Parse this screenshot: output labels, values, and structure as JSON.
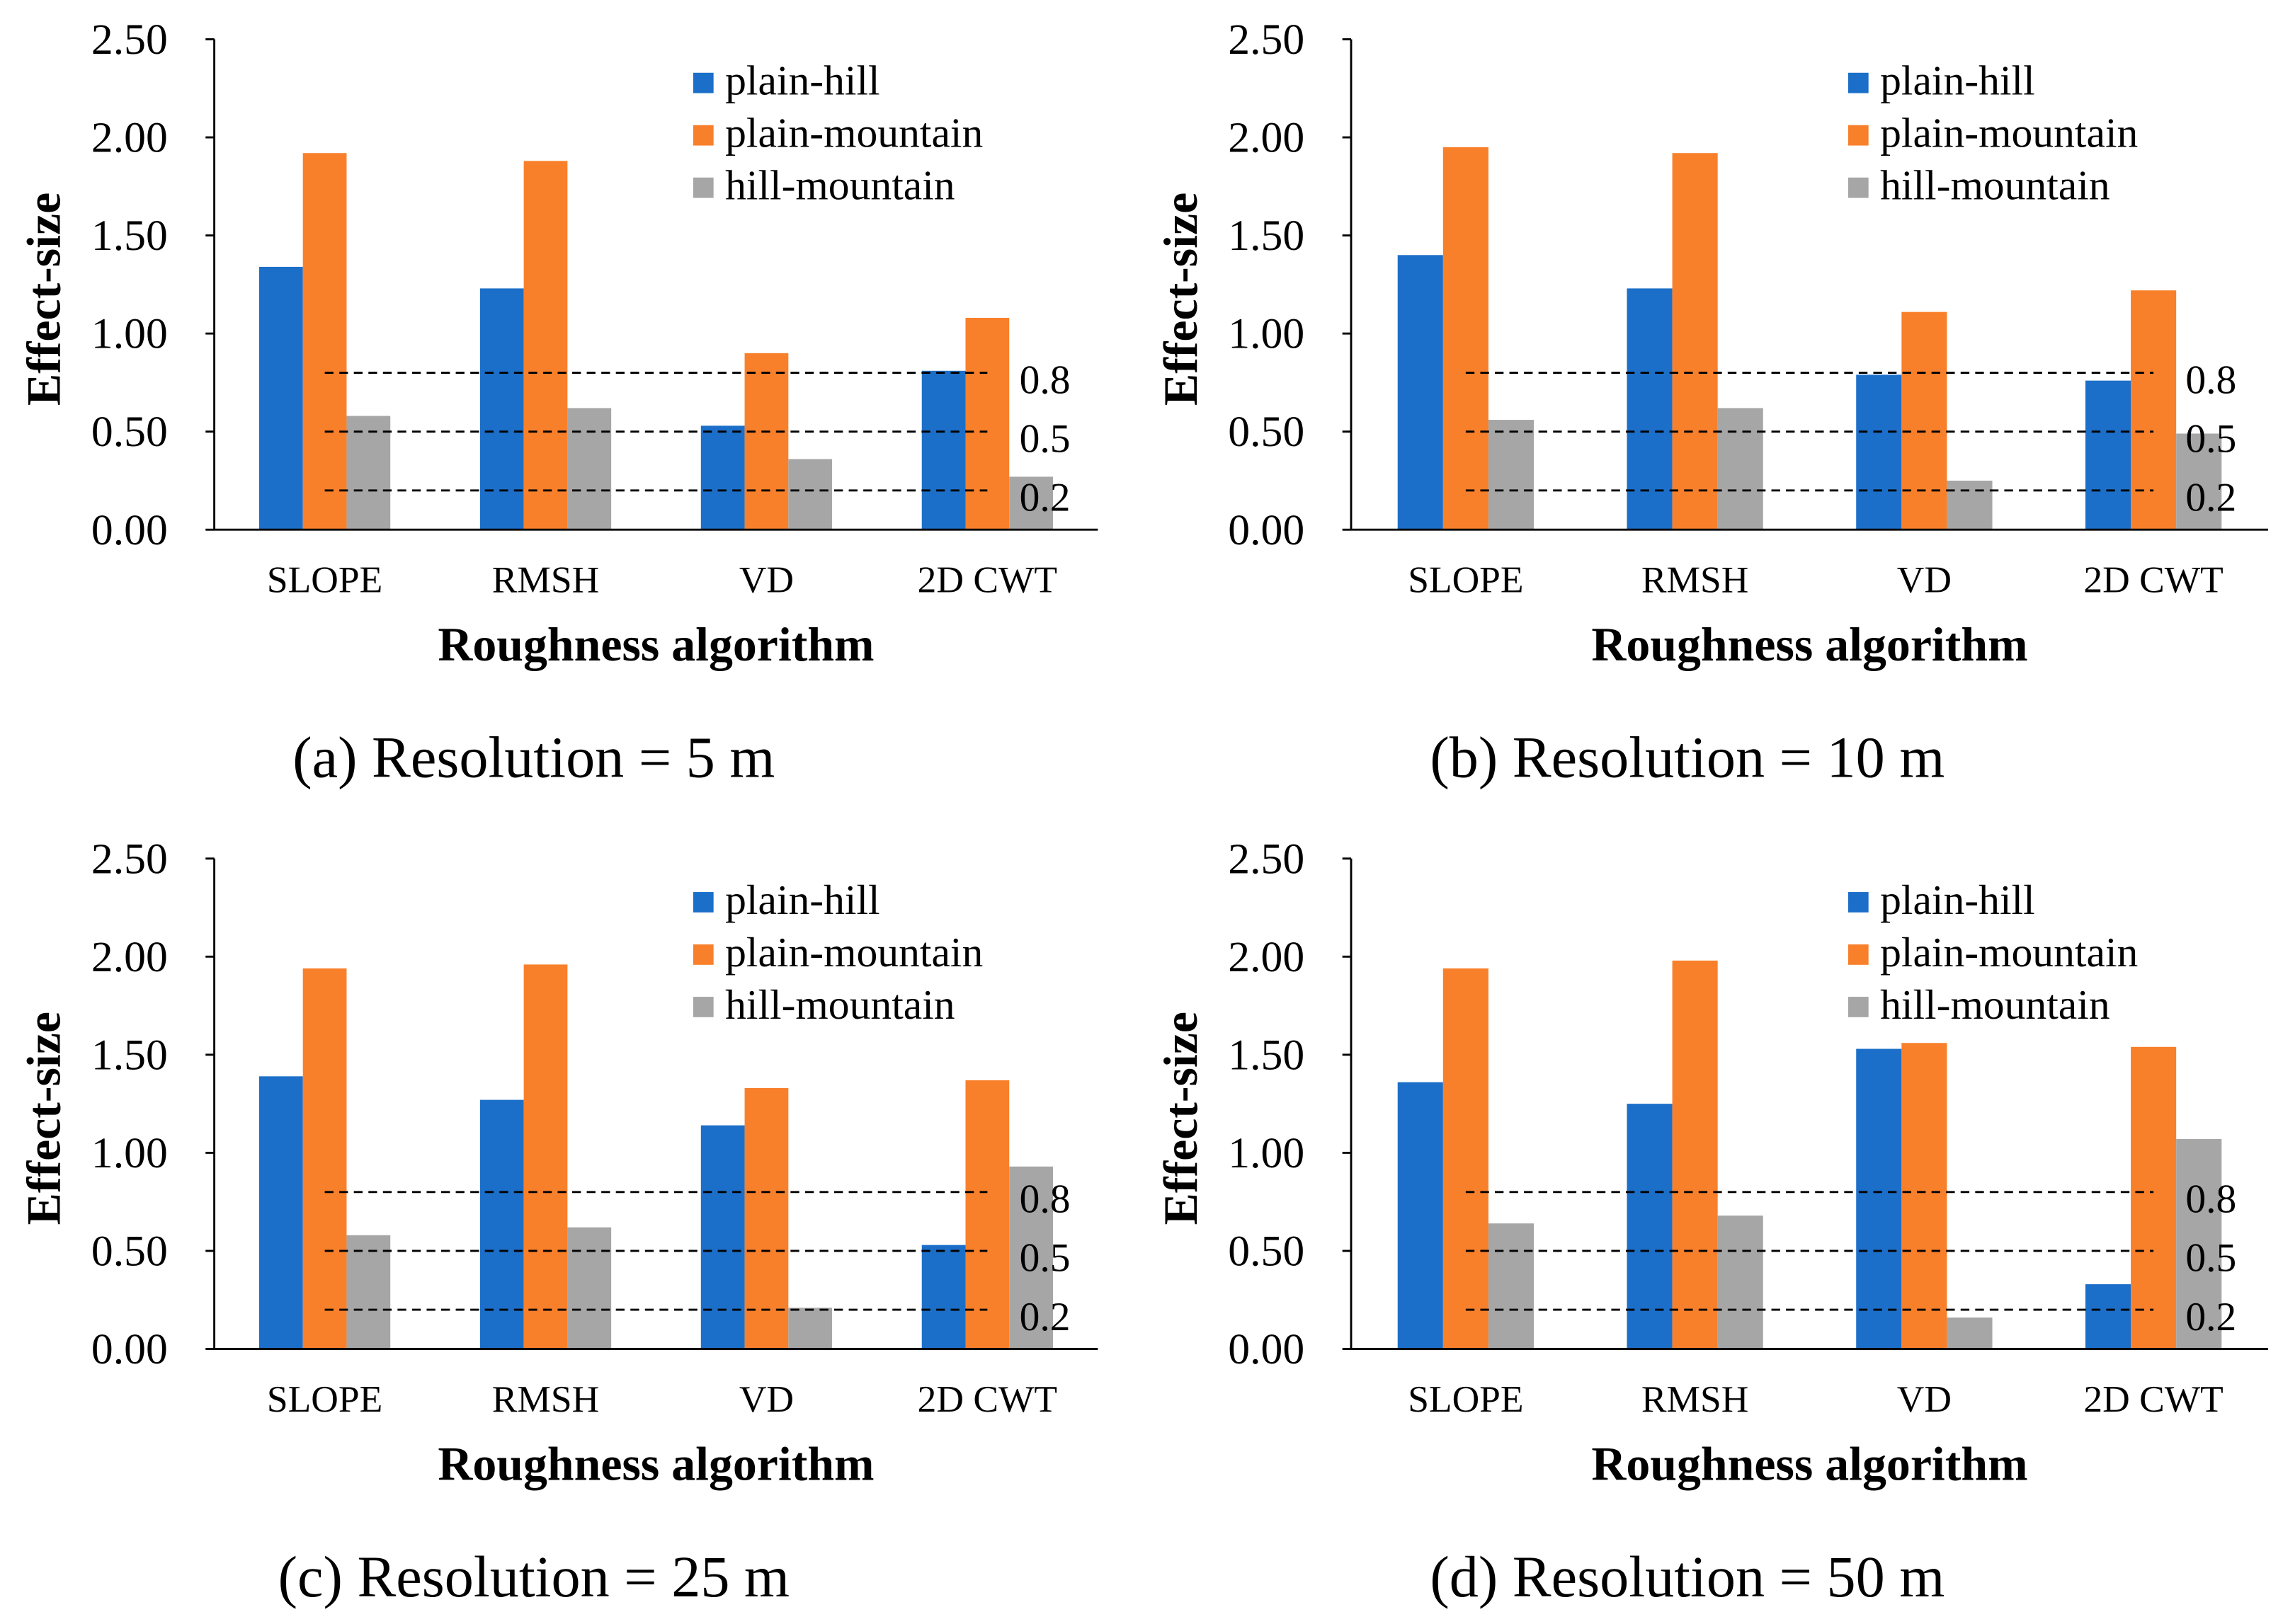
{
  "chart_data": [
    {
      "type": "bar",
      "caption": "(a) Resolution = 5 m",
      "xlabel": "Roughness algorithm",
      "ylabel": "Effect-size",
      "categories": [
        "SLOPE",
        "RMSH",
        "VD",
        "2D CWT"
      ],
      "series": [
        {
          "name": "plain-hill",
          "color": "#1C6FC9",
          "values": [
            1.34,
            1.23,
            0.53,
            0.81
          ]
        },
        {
          "name": "plain-mountain",
          "color": "#F9802B",
          "values": [
            1.92,
            1.88,
            0.9,
            1.08
          ]
        },
        {
          "name": "hill-mountain",
          "color": "#A6A6A6",
          "values": [
            0.58,
            0.62,
            0.36,
            0.27
          ]
        }
      ],
      "ylim": [
        0,
        2.5
      ],
      "yticks": [
        "0.00",
        "0.50",
        "1.00",
        "1.50",
        "2.00",
        "2.50"
      ],
      "reference_lines": [
        {
          "value": 0.8,
          "label": "0.8"
        },
        {
          "value": 0.5,
          "label": "0.5"
        },
        {
          "value": 0.2,
          "label": "0.2"
        }
      ],
      "legend_position": "top-right",
      "grid": false
    },
    {
      "type": "bar",
      "caption": "(b) Resolution = 10 m",
      "xlabel": "Roughness algorithm",
      "ylabel": "Effect-size",
      "categories": [
        "SLOPE",
        "RMSH",
        "VD",
        "2D CWT"
      ],
      "series": [
        {
          "name": "plain-hill",
          "color": "#1C6FC9",
          "values": [
            1.4,
            1.23,
            0.79,
            0.76
          ]
        },
        {
          "name": "plain-mountain",
          "color": "#F9802B",
          "values": [
            1.95,
            1.92,
            1.11,
            1.22
          ]
        },
        {
          "name": "hill-mountain",
          "color": "#A6A6A6",
          "values": [
            0.56,
            0.62,
            0.25,
            0.49
          ]
        }
      ],
      "ylim": [
        0,
        2.5
      ],
      "yticks": [
        "0.00",
        "0.50",
        "1.00",
        "1.50",
        "2.00",
        "2.50"
      ],
      "reference_lines": [
        {
          "value": 0.8,
          "label": "0.8"
        },
        {
          "value": 0.5,
          "label": "0.5"
        },
        {
          "value": 0.2,
          "label": "0.2"
        }
      ],
      "legend_position": "top-right",
      "grid": false
    },
    {
      "type": "bar",
      "caption": "(c) Resolution = 25 m",
      "xlabel": "Roughness algorithm",
      "ylabel": "Effect-size",
      "categories": [
        "SLOPE",
        "RMSH",
        "VD",
        "2D CWT"
      ],
      "series": [
        {
          "name": "plain-hill",
          "color": "#1C6FC9",
          "values": [
            1.39,
            1.27,
            1.14,
            0.53
          ]
        },
        {
          "name": "plain-mountain",
          "color": "#F9802B",
          "values": [
            1.94,
            1.96,
            1.33,
            1.37
          ]
        },
        {
          "name": "hill-mountain",
          "color": "#A6A6A6",
          "values": [
            0.58,
            0.62,
            0.21,
            0.93
          ]
        }
      ],
      "ylim": [
        0,
        2.5
      ],
      "yticks": [
        "0.00",
        "0.50",
        "1.00",
        "1.50",
        "2.00",
        "2.50"
      ],
      "reference_lines": [
        {
          "value": 0.8,
          "label": "0.8"
        },
        {
          "value": 0.5,
          "label": "0.5"
        },
        {
          "value": 0.2,
          "label": "0.2"
        }
      ],
      "legend_position": "top-right",
      "grid": false
    },
    {
      "type": "bar",
      "caption": "(d) Resolution = 50 m",
      "xlabel": "Roughness algorithm",
      "ylabel": "Effect-size",
      "categories": [
        "SLOPE",
        "RMSH",
        "VD",
        "2D CWT"
      ],
      "series": [
        {
          "name": "plain-hill",
          "color": "#1C6FC9",
          "values": [
            1.36,
            1.25,
            1.53,
            0.33
          ]
        },
        {
          "name": "plain-mountain",
          "color": "#F9802B",
          "values": [
            1.94,
            1.98,
            1.56,
            1.54
          ]
        },
        {
          "name": "hill-mountain",
          "color": "#A6A6A6",
          "values": [
            0.64,
            0.68,
            0.16,
            1.07
          ]
        }
      ],
      "ylim": [
        0,
        2.5
      ],
      "yticks": [
        "0.00",
        "0.50",
        "1.00",
        "1.50",
        "2.00",
        "2.50"
      ],
      "reference_lines": [
        {
          "value": 0.8,
          "label": "0.8"
        },
        {
          "value": 0.5,
          "label": "0.5"
        },
        {
          "value": 0.2,
          "label": "0.2"
        }
      ],
      "legend_position": "top-right",
      "grid": false
    }
  ]
}
